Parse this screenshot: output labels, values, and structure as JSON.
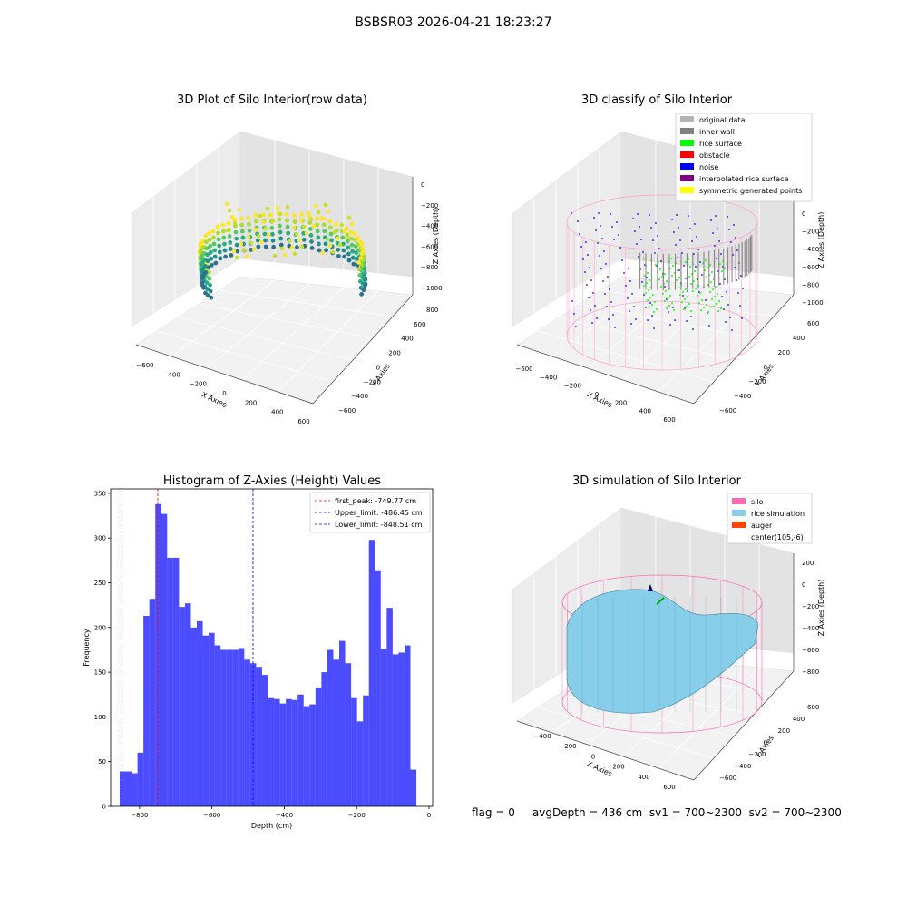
{
  "suptitle": "BSBSR03 2026-04-21 18:23:27",
  "panel1": {
    "title": "3D Plot of Silo Interior(row data)",
    "x_label": "X Axies",
    "y_label": "Y Axies",
    "z_label": "Z Axies (Depth)",
    "x_ticks": [
      "-600",
      "-400",
      "-200",
      "0",
      "200",
      "400",
      "600"
    ],
    "y_ticks": [
      "-600",
      "-400",
      "-200",
      "0",
      "200",
      "400",
      "600",
      "800"
    ],
    "z_ticks": [
      "0",
      "-200",
      "-400",
      "-600",
      "-800",
      "-1000"
    ]
  },
  "panel2": {
    "title": "3D classify of Silo Interior",
    "x_label": "X Axies",
    "y_label": "Y Axies",
    "z_label": "Z Axies (Depth)",
    "x_ticks": [
      "-600",
      "-400",
      "-200",
      "0",
      "200",
      "400",
      "600"
    ],
    "y_ticks": [
      "-600",
      "-400",
      "-200",
      "0",
      "200",
      "400",
      "600"
    ],
    "z_ticks": [
      "0",
      "-200",
      "-400",
      "-600",
      "-800",
      "-1000"
    ],
    "legend": [
      {
        "label": "original data",
        "color": "#b3b3b3"
      },
      {
        "label": "inner wall",
        "color": "#808080"
      },
      {
        "label": "rice surface",
        "color": "#00ff00"
      },
      {
        "label": "obstacle",
        "color": "#ff0000"
      },
      {
        "label": "noise",
        "color": "#0000ff"
      },
      {
        "label": "interpolated rice surface",
        "color": "#800080"
      },
      {
        "label": "symmetric generated points",
        "color": "#ffff00"
      }
    ]
  },
  "panel4": {
    "title": "3D simulation of Silo Interior",
    "x_label": "X Axies",
    "y_label": "Y Axies",
    "z_label": "Z Axies (Depth)",
    "x_ticks": [
      "-400",
      "-200",
      "0",
      "200",
      "400",
      "600"
    ],
    "y_ticks": [
      "-600",
      "-400",
      "-200",
      "0",
      "200",
      "400",
      "600"
    ],
    "z_ticks": [
      "200",
      "0",
      "-200",
      "-400",
      "-600",
      "-800"
    ],
    "legend": [
      {
        "label": "silo",
        "color": "#ff69b4"
      },
      {
        "label": "rice simulation",
        "color": "#87ceeb"
      },
      {
        "label": "auger",
        "color": "#ff4500"
      },
      {
        "label": "center(105,-6)",
        "color": ""
      }
    ]
  },
  "status_text": "flag = 0     avgDepth = 436 cm  sv1 = 700~2300  sv2 = 700~2300",
  "chart_data": {
    "type": "bar",
    "title": "Histogram of Z-Axies (Height) Values",
    "xlabel": "Depth (cm)",
    "ylabel": "Frequency",
    "bar_color": "#0000ff",
    "xlim": [
      -880,
      10
    ],
    "ylim": [
      0,
      355
    ],
    "x_ticks": [
      -800,
      -600,
      -400,
      -200,
      0
    ],
    "y_ticks": [
      0,
      50,
      100,
      150,
      200,
      250,
      300,
      350
    ],
    "bin_start": -855,
    "bin_width": 16.4,
    "values": [
      39,
      39,
      37,
      60,
      213,
      232,
      338,
      327,
      278,
      278,
      223,
      227,
      200,
      207,
      191,
      194,
      180,
      175,
      175,
      175,
      177,
      164,
      160,
      156,
      147,
      121,
      120,
      115,
      120,
      119,
      125,
      112,
      114,
      133,
      150,
      175,
      164,
      185,
      160,
      121,
      95,
      124,
      298,
      264,
      176,
      222,
      170,
      172,
      180,
      41
    ],
    "vlines": [
      {
        "label": "first_peak: -749.77 cm",
        "x": -749.77,
        "color": "#ff0000"
      },
      {
        "label": "Upper_limit: -486.45 cm",
        "x": -486.45,
        "color": "#0000ff"
      },
      {
        "label": "Lower_limit: -848.51 cm",
        "x": -848.51,
        "color": "#0000ff"
      }
    ]
  }
}
